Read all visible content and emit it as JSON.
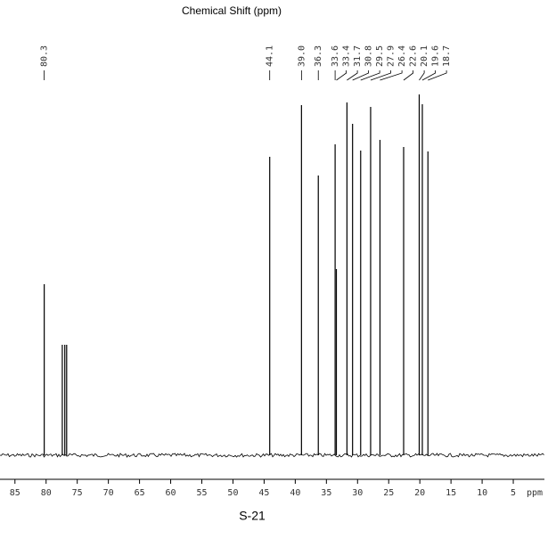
{
  "chart_data": {
    "type": "spectrum",
    "title": "Chemical Shift (ppm)",
    "x_label": "ppm",
    "caption": "S-21",
    "xlim": [
      87.4,
      0
    ],
    "xticks": [
      85,
      80,
      75,
      70,
      65,
      60,
      55,
      50,
      45,
      40,
      35,
      30,
      25,
      20,
      15,
      10,
      5
    ],
    "ylim": [
      0,
      420
    ],
    "color": "#000000",
    "peaks": {
      "x": [
        80.3,
        77.4,
        77.0,
        76.7,
        44.1,
        39.0,
        36.3,
        33.6,
        33.4,
        31.7,
        30.8,
        29.5,
        27.9,
        26.4,
        22.6,
        20.1,
        19.6,
        18.7
      ],
      "values": [
        192,
        124,
        124,
        124,
        335,
        393,
        314,
        349,
        209,
        396,
        372,
        342,
        391,
        354,
        346,
        405,
        394,
        341
      ]
    },
    "peak_labels": [
      80.3,
      44.1,
      {
        "value": 39,
        "label": "39.0"
      },
      36.3,
      33.6,
      33.4,
      31.7,
      30.8,
      29.5,
      27.9,
      26.4,
      22.6,
      20.1,
      19.6,
      18.7
    ]
  }
}
